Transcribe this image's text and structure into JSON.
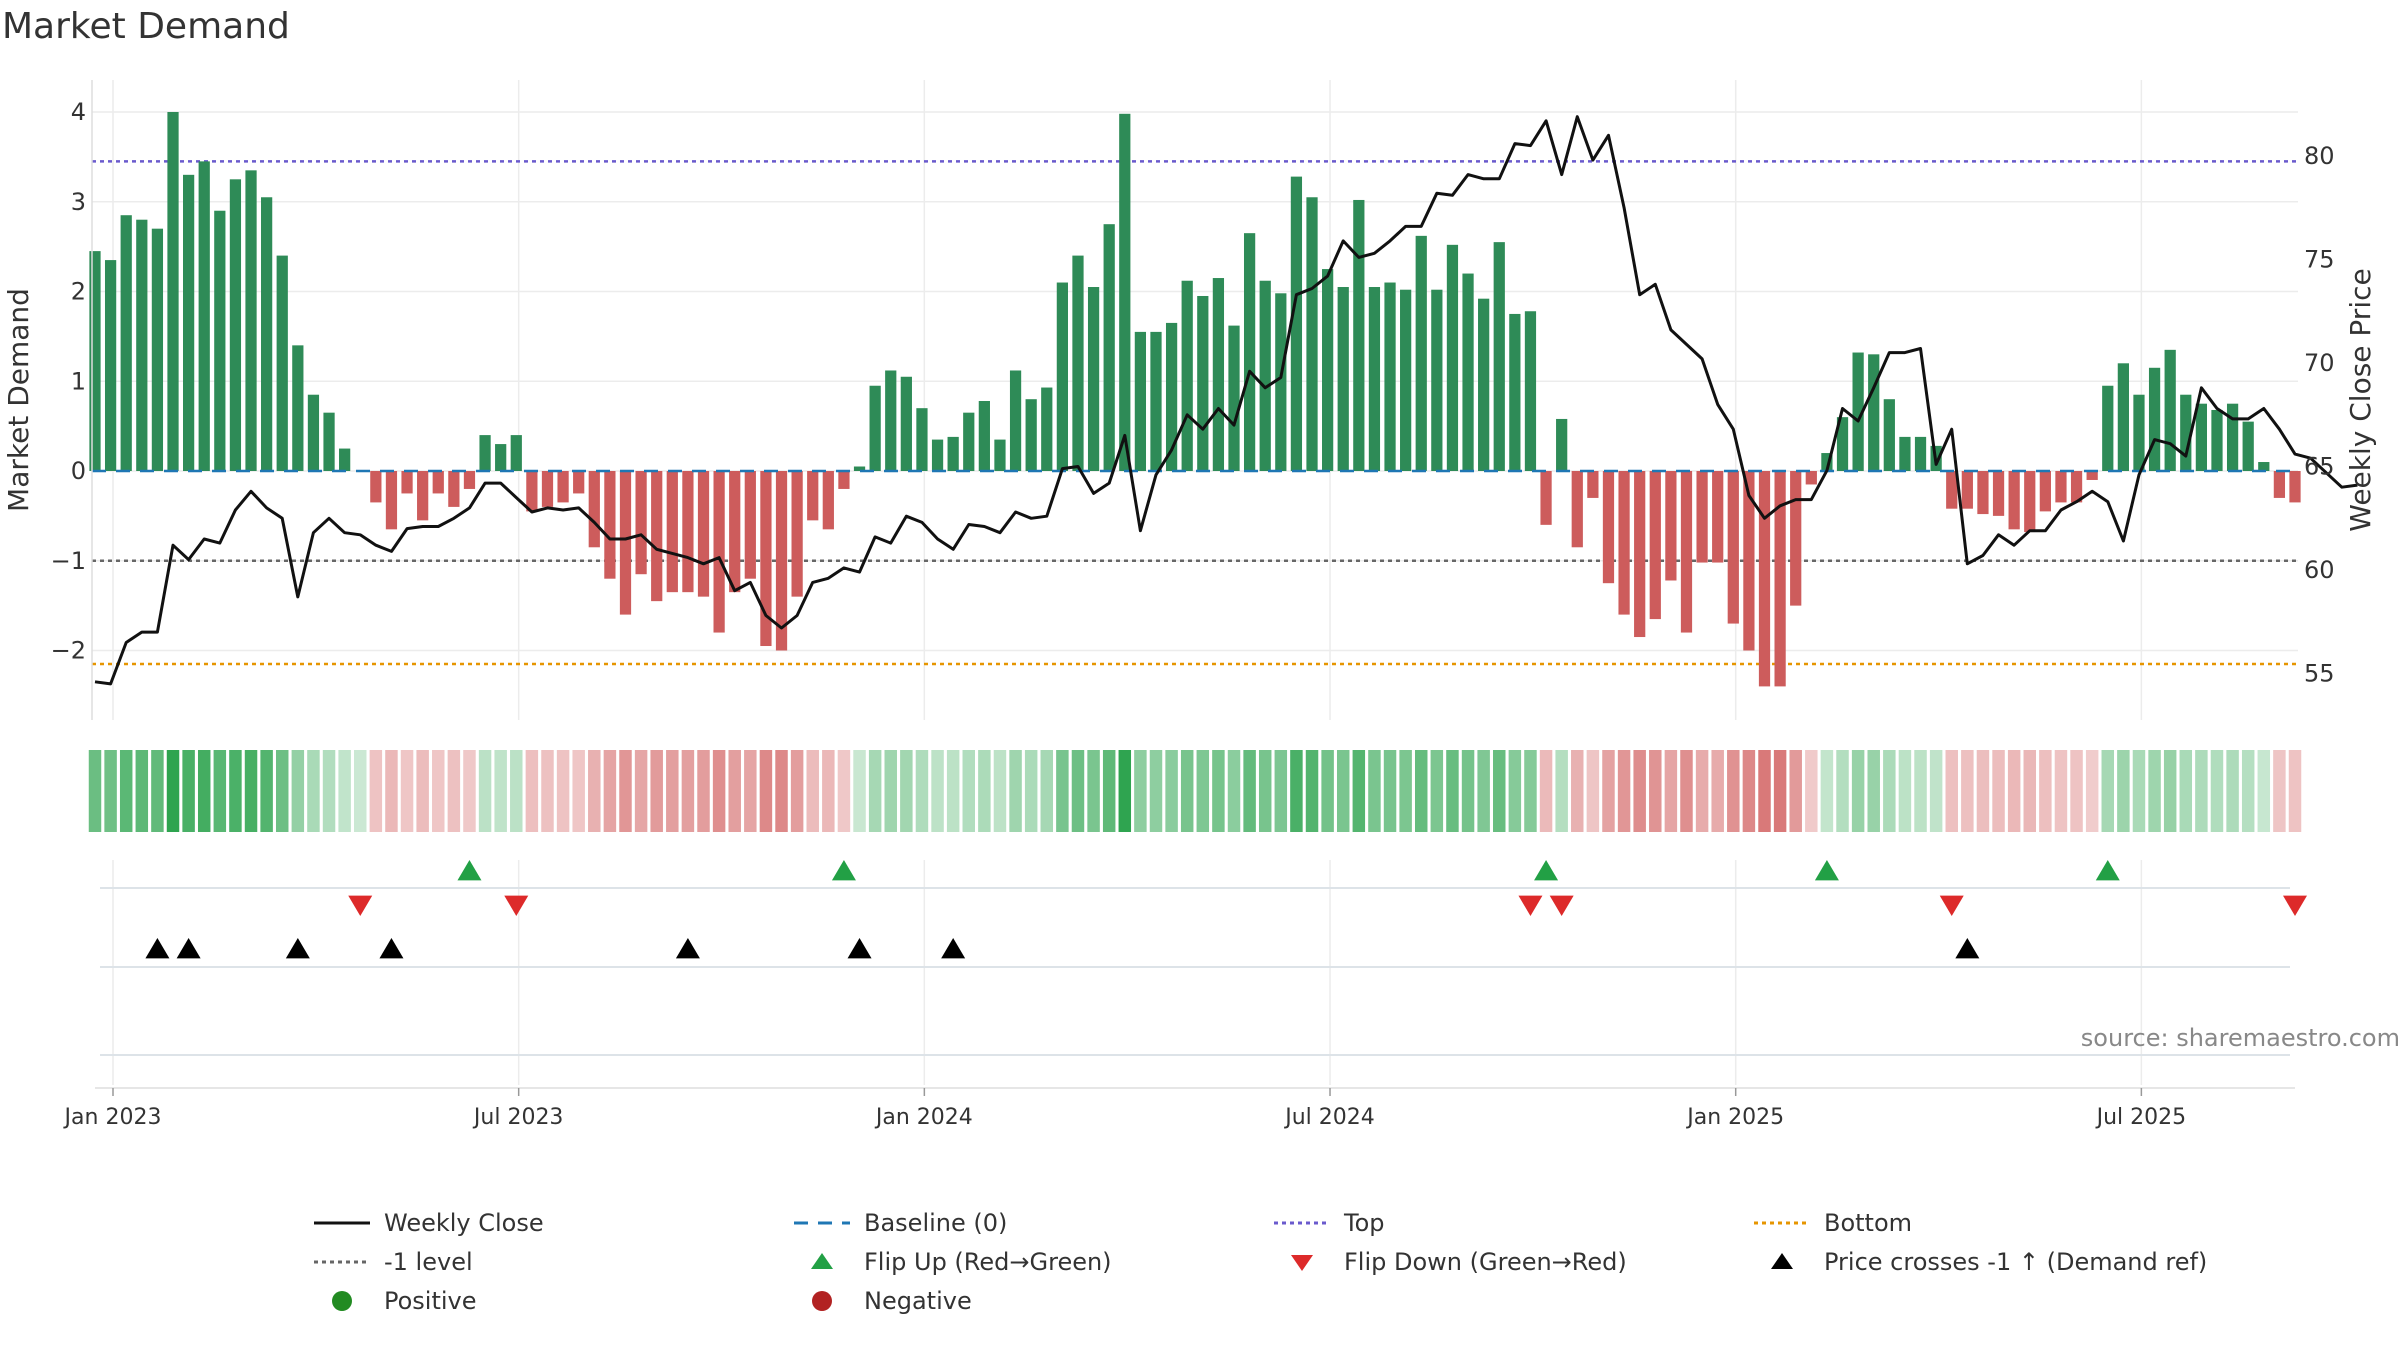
{
  "title": "Market Demand",
  "source": "source: sharemaestro.com",
  "colors": {
    "positive": "#2e8b57",
    "negative": "#cd5c5c",
    "price": "#111111",
    "baseline": "#1f77b4",
    "top": "#6a5acd",
    "bottom": "#e69500",
    "minus1": "#666666",
    "flip_up": "#22a045",
    "flip_down": "#dd2a2a",
    "cross": "#000000"
  },
  "chart_data": {
    "type": "bar+line",
    "ylabel_left": "Market Demand",
    "ylabel_right": "Weekly Close Price",
    "y_left_range": [
      -2.75,
      4.15
    ],
    "y_right_range": [
      53.5,
      82.2
    ],
    "y_left_ticks": [
      {
        "v": 4,
        "label": "4"
      },
      {
        "v": 3,
        "label": "3"
      },
      {
        "v": 2,
        "label": "2"
      },
      {
        "v": 1,
        "label": "1"
      },
      {
        "v": 0,
        "label": "0"
      },
      {
        "v": -1,
        "label": "−1"
      },
      {
        "v": -2,
        "label": "−2"
      }
    ],
    "y_right_ticks": [
      {
        "v": 80,
        "label": "80"
      },
      {
        "v": 75,
        "label": "75"
      },
      {
        "v": 70,
        "label": "70"
      },
      {
        "v": 65,
        "label": "65"
      },
      {
        "v": 60,
        "label": "60"
      },
      {
        "v": 55,
        "label": "55"
      }
    ],
    "x_ticks": [
      {
        "week": 0,
        "label": "Jan 2023"
      },
      {
        "week": 26,
        "label": "Jul 2023"
      },
      {
        "week": 52,
        "label": "Jan 2024"
      },
      {
        "week": 78,
        "label": "Jul 2024"
      },
      {
        "week": 104,
        "label": "Jan 2025"
      },
      {
        "week": 130,
        "label": "Jul 2025"
      }
    ],
    "reference_lines": {
      "top": 3.45,
      "bottom": -2.15,
      "minus1_level": -1,
      "baseline": 0
    },
    "demand": [
      2.45,
      2.35,
      2.85,
      2.8,
      2.7,
      4.0,
      3.3,
      3.45,
      2.9,
      3.25,
      3.35,
      3.05,
      2.4,
      1.4,
      0.85,
      0.65,
      0.25,
      0.0,
      -0.35,
      -0.65,
      -0.25,
      -0.55,
      -0.25,
      -0.4,
      -0.2,
      0.4,
      0.3,
      0.4,
      -0.45,
      -0.4,
      -0.35,
      -0.25,
      -0.85,
      -1.2,
      -1.6,
      -1.15,
      -1.45,
      -1.35,
      -1.35,
      -1.4,
      -1.8,
      -1.35,
      -1.2,
      -1.95,
      -2.0,
      -1.4,
      -0.55,
      -0.65,
      -0.2,
      0.05,
      0.95,
      1.12,
      1.05,
      0.7,
      0.35,
      0.38,
      0.65,
      0.78,
      0.35,
      1.12,
      0.8,
      0.93,
      2.1,
      2.4,
      2.05,
      2.75,
      3.98,
      1.55,
      1.55,
      1.65,
      2.12,
      1.95,
      2.15,
      1.62,
      2.65,
      2.12,
      1.98,
      3.28,
      3.05,
      2.25,
      2.05,
      3.02,
      2.05,
      2.1,
      2.02,
      2.62,
      2.02,
      2.52,
      2.2,
      1.92,
      2.55,
      1.75,
      1.78,
      -0.6,
      0.58,
      -0.85,
      -0.3,
      -1.25,
      -1.6,
      -1.85,
      -1.65,
      -1.22,
      -1.8,
      -1.02,
      -1.02,
      -1.7,
      -2.0,
      -2.4,
      -2.4,
      -1.5,
      -0.15,
      0.2,
      0.6,
      1.32,
      1.3,
      0.8,
      0.38,
      0.38,
      0.28,
      -0.42,
      -0.42,
      -0.48,
      -0.5,
      -0.65,
      -0.68,
      -0.45,
      -0.35,
      -0.35,
      -0.1,
      0.95,
      1.2,
      0.85,
      1.15,
      1.35,
      0.85,
      0.75,
      0.68,
      0.75,
      0.55,
      0.1,
      -0.3,
      -0.35
    ],
    "price": [
      54.6,
      54.5,
      56.5,
      57.0,
      57.0,
      61.2,
      60.5,
      61.5,
      61.3,
      62.9,
      63.8,
      63.0,
      62.5,
      58.7,
      61.8,
      62.5,
      61.8,
      61.7,
      61.2,
      60.9,
      62.0,
      62.1,
      62.1,
      62.5,
      63.0,
      64.2,
      64.2,
      63.5,
      62.8,
      63.0,
      62.9,
      63.0,
      62.3,
      61.5,
      61.5,
      61.7,
      61.0,
      60.8,
      60.6,
      60.3,
      60.6,
      59.0,
      59.4,
      57.8,
      57.2,
      57.8,
      59.4,
      59.6,
      60.1,
      59.9,
      61.6,
      61.3,
      62.6,
      62.3,
      61.5,
      61.0,
      62.2,
      62.1,
      61.8,
      62.8,
      62.5,
      62.6,
      64.9,
      65.0,
      63.7,
      64.2,
      66.5,
      61.9,
      64.6,
      65.8,
      67.5,
      66.8,
      67.8,
      67.0,
      69.6,
      68.8,
      69.3,
      73.3,
      73.6,
      74.2,
      75.9,
      75.1,
      75.3,
      75.9,
      76.6,
      76.6,
      78.2,
      78.1,
      79.1,
      78.9,
      78.9,
      80.6,
      80.5,
      81.7,
      79.1,
      81.9,
      79.8,
      81.0,
      77.5,
      73.3,
      73.8,
      71.6,
      70.9,
      70.2,
      68.0,
      66.8,
      63.6,
      62.5,
      63.1,
      63.4,
      63.4,
      64.8,
      67.8,
      67.2,
      68.8,
      70.5,
      70.5,
      70.7,
      65.1,
      66.8,
      60.3,
      60.7,
      61.7,
      61.2,
      61.9,
      61.9,
      62.9,
      63.3,
      63.8,
      63.3,
      61.4,
      64.6,
      66.3,
      66.1,
      65.5,
      68.8,
      67.8,
      67.3,
      67.3,
      67.8,
      66.8,
      65.6,
      65.4,
      64.7,
      64.0,
      64.1
    ],
    "flip_up_weeks": [
      24,
      48,
      93,
      111,
      129
    ],
    "flip_down_weeks": [
      17,
      27,
      92,
      94,
      119,
      141
    ],
    "price_cross_weeks": [
      4,
      6,
      13,
      19,
      38,
      49,
      55,
      120
    ],
    "legend": [
      {
        "symbol": "line-solid",
        "label": "Weekly Close"
      },
      {
        "symbol": "line-dash",
        "label": "Baseline (0)"
      },
      {
        "symbol": "line-dot-blue",
        "label": "Top"
      },
      {
        "symbol": "line-dot-orange",
        "label": "Bottom"
      },
      {
        "symbol": "line-dot-grey",
        "label": "-1 level"
      },
      {
        "symbol": "tri-up-green",
        "label": "Flip Up (Red→Green)"
      },
      {
        "symbol": "tri-down-red",
        "label": "Flip Down (Green→Red)"
      },
      {
        "symbol": "tri-up-black",
        "label": "Price crosses -1 ↑ (Demand ref)"
      },
      {
        "symbol": "dot-green",
        "label": "Positive"
      },
      {
        "symbol": "dot-red",
        "label": "Negative"
      }
    ]
  }
}
